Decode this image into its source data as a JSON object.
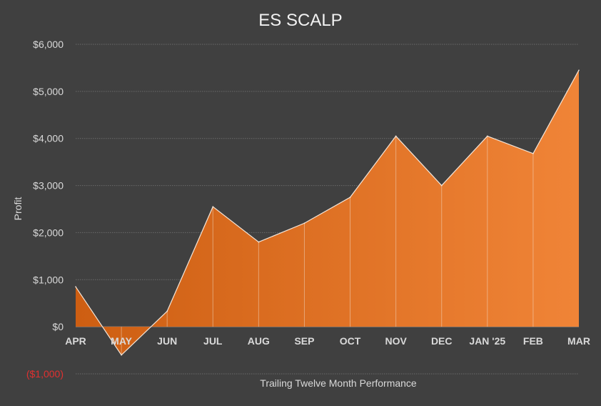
{
  "chart_data": {
    "type": "area",
    "title": "ES SCALP",
    "xlabel": "Trailing Twelve Month Performance",
    "ylabel": "Profit",
    "categories": [
      "APR",
      "MAY",
      "JUN",
      "JUL",
      "AUG",
      "SEP",
      "OCT",
      "NOV",
      "DEC",
      "JAN '25",
      "FEB",
      "MAR"
    ],
    "series": [
      {
        "values": [
          850,
          -600,
          330,
          2550,
          1800,
          2200,
          2750,
          4050,
          3000,
          4050,
          3680,
          5450
        ]
      }
    ],
    "ylim": [
      -1000,
      6000
    ],
    "yticks": [
      {
        "value": 6000,
        "label": "$6,000"
      },
      {
        "value": 5000,
        "label": "$5,000"
      },
      {
        "value": 4000,
        "label": "$4,000"
      },
      {
        "value": 3000,
        "label": "$3,000"
      },
      {
        "value": 2000,
        "label": "$2,000"
      },
      {
        "value": 1000,
        "label": "$1,000"
      },
      {
        "value": 0,
        "label": "$0"
      },
      {
        "value": -1000,
        "label": "($1,000)"
      }
    ],
    "grid": true,
    "legend": "none",
    "colors": {
      "background": "#404040",
      "area_light": "#F08437",
      "area_dark": "#CD5E12",
      "outline": "#F5E6D8",
      "gridline": "#6A6A6A",
      "text": "#D9D9D9",
      "title": "#F2F2F2",
      "negative_label": "#E03030"
    }
  }
}
